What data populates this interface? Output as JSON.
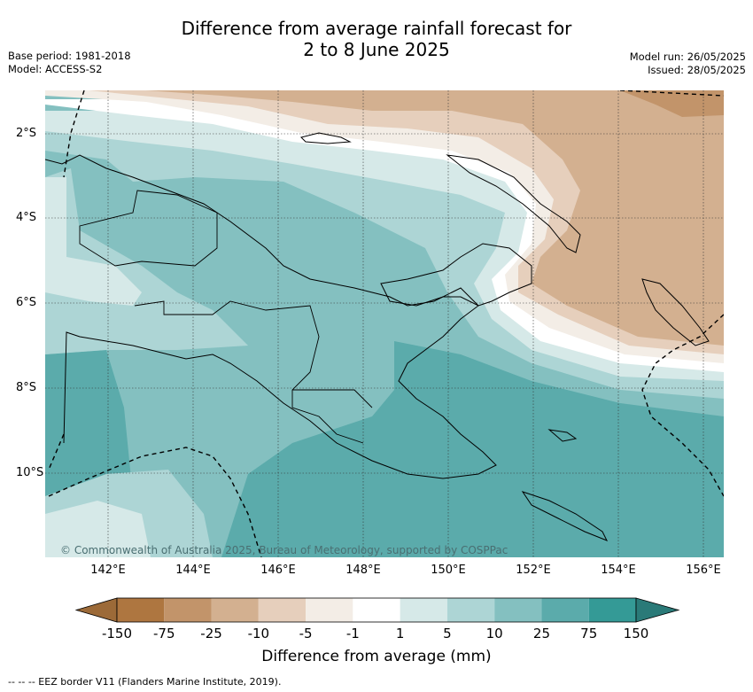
{
  "title_line1": "Difference from average rainfall forecast for",
  "title_line2": "2 to 8 June 2025",
  "meta_left": {
    "base_period": "Base period: 1981-2018",
    "model": "Model: ACCESS-S2"
  },
  "meta_right": {
    "model_run": "Model run: 26/05/2025",
    "issued": "Issued: 28/05/2025"
  },
  "x_ticks": [
    "142°E",
    "144°E",
    "146°E",
    "148°E",
    "150°E",
    "152°E",
    "154°E",
    "156°E"
  ],
  "y_ticks": [
    "2°S",
    "4°S",
    "6°S",
    "8°S",
    "10°S"
  ],
  "copyright": "© Commonwealth of Australia 2025, Bureau of Meteorology, supported by COSPPac",
  "colorbar": {
    "labels": [
      "-150",
      "-75",
      "-25",
      "-10",
      "-5",
      "-1",
      "1",
      "5",
      "10",
      "25",
      "75",
      "150"
    ],
    "colors": [
      "#9c6a38",
      "#ae7640",
      "#c2946a",
      "#d3b090",
      "#e6cfbc",
      "#f3ede6",
      "#ffffff",
      "#d6e9e8",
      "#add5d5",
      "#84c0c0",
      "#5babab",
      "#349a96",
      "#2a7a78"
    ],
    "title": "Difference from average (mm)"
  },
  "footnote": "-- -- -- EEZ border V11 (Flanders Marine Institute, 2019)."
}
